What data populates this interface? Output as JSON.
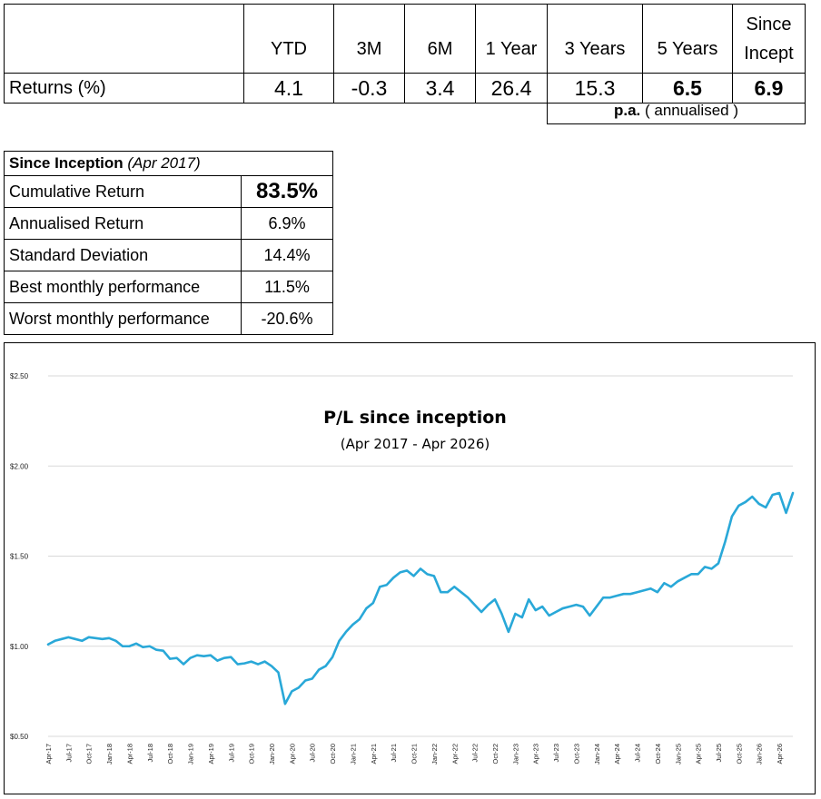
{
  "returns": {
    "headers": [
      "YTD",
      "3M",
      "6M",
      "1 Year",
      "3 Years",
      "5 Years",
      "Since Incept"
    ],
    "since_line1": "Since",
    "since_line2": "Incept",
    "row_label": "Returns (%)",
    "values": [
      "4.1",
      "-0.3",
      "3.4",
      "26.4",
      "15.3",
      "6.5",
      "6.9"
    ],
    "pa_label": "p.a.",
    "pa_note": "( annualised )"
  },
  "since_inception": {
    "title": "Since Inception",
    "title_paren": "(Apr 2017)",
    "rows": [
      {
        "label": "Cumulative Return",
        "value": "83.5%"
      },
      {
        "label": "Annualised Return",
        "value": "6.9%"
      },
      {
        "label": "Standard Deviation",
        "value": "14.4%"
      },
      {
        "label": "Best monthly performance",
        "value": "11.5%"
      },
      {
        "label": "Worst monthly performance",
        "value": "-20.6%"
      }
    ]
  },
  "chart_data": {
    "type": "line",
    "title": "P/L since inception",
    "subtitle": "(Apr 2017 - Apr 2026)",
    "xlabel": "",
    "ylabel": "",
    "ylim": [
      0.5,
      2.5
    ],
    "y_ticks": [
      "$0.50",
      "$1.00",
      "$1.50",
      "$2.00",
      "$2.50"
    ],
    "y_tick_values": [
      0.5,
      1.0,
      1.5,
      2.0,
      2.5
    ],
    "x_tick_labels": [
      "Apr-17",
      "Jul-17",
      "Oct-17",
      "Jan-18",
      "Apr-18",
      "Jul-18",
      "Oct-18",
      "Jan-19",
      "Apr-19",
      "Jul-19",
      "Oct-19",
      "Jan-20",
      "Apr-20",
      "Jul-20",
      "Oct-20",
      "Jan-21",
      "Apr-21",
      "Jul-21",
      "Oct-21",
      "Jan-22",
      "Apr-22",
      "Jul-22",
      "Oct-22",
      "Jan-23",
      "Apr-23",
      "Jul-23",
      "Oct-23",
      "Jan-24",
      "Apr-24",
      "Jul-24",
      "Oct-24",
      "Jan-25",
      "Apr-25",
      "Jul-25",
      "Oct-25",
      "Jan-26",
      "Apr-26"
    ],
    "grid": true,
    "line_color": "#29a8d8",
    "series": [
      {
        "values": [
          1.01,
          1.03,
          1.04,
          1.05,
          1.04,
          1.03,
          1.05,
          1.045,
          1.04,
          1.045,
          1.03,
          1.0,
          1.0,
          1.015,
          0.995,
          1.0,
          0.98,
          0.975,
          0.93,
          0.935,
          0.9,
          0.935,
          0.95,
          0.945,
          0.95,
          0.92,
          0.935,
          0.94,
          0.9,
          0.905,
          0.915,
          0.9,
          0.915,
          0.89,
          0.855,
          0.68,
          0.75,
          0.77,
          0.81,
          0.82,
          0.87,
          0.89,
          0.94,
          1.03,
          1.08,
          1.12,
          1.15,
          1.21,
          1.24,
          1.33,
          1.34,
          1.38,
          1.41,
          1.42,
          1.39,
          1.43,
          1.4,
          1.39,
          1.3,
          1.3,
          1.33,
          1.3,
          1.27,
          1.23,
          1.19,
          1.23,
          1.26,
          1.18,
          1.08,
          1.18,
          1.16,
          1.26,
          1.2,
          1.22,
          1.17,
          1.19,
          1.21,
          1.22,
          1.23,
          1.22,
          1.17,
          1.22,
          1.27,
          1.27,
          1.28,
          1.29,
          1.29,
          1.3,
          1.31,
          1.32,
          1.3,
          1.35,
          1.33,
          1.36,
          1.38,
          1.4,
          1.4,
          1.44,
          1.43,
          1.46,
          1.58,
          1.72,
          1.78,
          1.8,
          1.83,
          1.79,
          1.77,
          1.84,
          1.85,
          1.74,
          1.85
        ]
      }
    ]
  }
}
